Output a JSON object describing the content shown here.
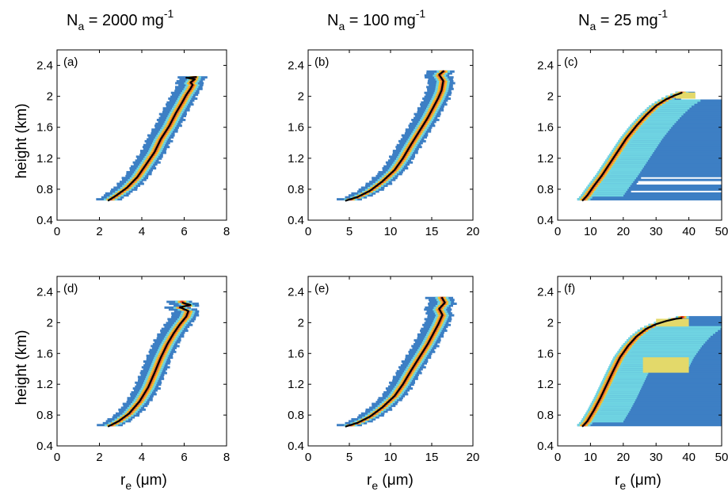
{
  "column_titles": [
    {
      "main": "N",
      "sub": "a",
      "rest": " = 2000 mg",
      "sup": "-1"
    },
    {
      "main": "N",
      "sub": "a",
      "rest": " = 100 mg",
      "sup": "-1"
    },
    {
      "main": "N",
      "sub": "a",
      "rest": " = 25 mg",
      "sup": "-1"
    }
  ],
  "ylabel": "height (km)",
  "xlabel": {
    "main": "r",
    "sub": "e",
    "rest": " (μm)"
  },
  "colors": {
    "low": "#3d7fc4",
    "mid_low": "#6fd4e2",
    "mid": "#e3d96a",
    "mid_high": "#f6c32a",
    "high": "#ef7a2a",
    "peak": "#e0302a",
    "curve": "#000000"
  },
  "chart_data": [
    {
      "panel": "(a)",
      "type": "heatmap",
      "xlim": [
        0,
        8
      ],
      "ylim": [
        0.4,
        2.6
      ],
      "xticks": [
        "0",
        "2",
        "4",
        "6",
        "8"
      ],
      "yticks": [
        "0.4",
        "0.8",
        "1.2",
        "1.6",
        "2",
        "2.4"
      ],
      "curve": {
        "x": [
          2.4,
          2.8,
          3.3,
          3.8,
          4.2,
          4.6,
          4.9,
          5.3,
          5.6,
          5.9,
          6.1,
          6.3,
          6.4,
          6.3,
          6.5,
          6.1,
          6.6
        ],
        "y": [
          0.65,
          0.72,
          0.82,
          0.96,
          1.12,
          1.28,
          1.45,
          1.62,
          1.78,
          1.92,
          2.02,
          2.1,
          2.15,
          2.18,
          2.22,
          2.24,
          2.25
        ]
      }
    },
    {
      "panel": "(b)",
      "type": "heatmap",
      "xlim": [
        0,
        20
      ],
      "ylim": [
        0.4,
        2.6
      ],
      "xticks": [
        "0",
        "5",
        "10",
        "15",
        "20"
      ],
      "yticks": [
        "0.4",
        "0.8",
        "1.2",
        "1.6",
        "2",
        "2.4"
      ],
      "curve": {
        "x": [
          4.5,
          6,
          7.5,
          9,
          10.5,
          11.5,
          12.5,
          13.5,
          14.5,
          15.3,
          15.8,
          16.2,
          16.4,
          15.9,
          16.5
        ],
        "y": [
          0.65,
          0.7,
          0.78,
          0.9,
          1.05,
          1.2,
          1.38,
          1.55,
          1.72,
          1.88,
          1.98,
          2.08,
          2.2,
          2.28,
          2.33
        ]
      }
    },
    {
      "panel": "(c)",
      "type": "heatmap",
      "xlim": [
        0,
        50
      ],
      "ylim": [
        0.4,
        2.6
      ],
      "xticks": [
        "0",
        "10",
        "20",
        "30",
        "40",
        "50"
      ],
      "yticks": [
        "0.4",
        "0.8",
        "1.2",
        "1.6",
        "2",
        "2.4"
      ],
      "curve": {
        "x": [
          7.5,
          9,
          11,
          13.5,
          16,
          18.5,
          21,
          24,
          27,
          30,
          33,
          35.5,
          37.5,
          38
        ],
        "y": [
          0.65,
          0.72,
          0.84,
          0.98,
          1.14,
          1.3,
          1.46,
          1.62,
          1.76,
          1.88,
          1.96,
          2.01,
          2.04,
          2.05
        ]
      }
    },
    {
      "panel": "(d)",
      "type": "heatmap",
      "xlim": [
        0,
        8
      ],
      "ylim": [
        0.4,
        2.6
      ],
      "xticks": [
        "0",
        "2",
        "4",
        "6",
        "8"
      ],
      "yticks": [
        "0.4",
        "0.8",
        "1.2",
        "1.6",
        "2",
        "2.4"
      ],
      "curve": {
        "x": [
          2.4,
          2.9,
          3.4,
          3.9,
          4.3,
          4.6,
          4.9,
          5.2,
          5.5,
          5.8,
          6.1,
          6.2,
          5.8,
          6.3,
          5.9
        ],
        "y": [
          0.65,
          0.72,
          0.82,
          0.98,
          1.16,
          1.35,
          1.55,
          1.72,
          1.86,
          1.98,
          2.08,
          2.15,
          2.2,
          2.23,
          2.26
        ]
      }
    },
    {
      "panel": "(e)",
      "type": "heatmap",
      "xlim": [
        0,
        20
      ],
      "ylim": [
        0.4,
        2.6
      ],
      "xticks": [
        "0",
        "5",
        "10",
        "15",
        "20"
      ],
      "yticks": [
        "0.4",
        "0.8",
        "1.2",
        "1.6",
        "2",
        "2.4"
      ],
      "curve": {
        "x": [
          4.5,
          6,
          7.5,
          9,
          10.5,
          11.5,
          12.5,
          13.5,
          14.5,
          15.3,
          15.8,
          16.3,
          15.9,
          16.6,
          16.2
        ],
        "y": [
          0.65,
          0.7,
          0.78,
          0.9,
          1.05,
          1.2,
          1.38,
          1.55,
          1.72,
          1.88,
          1.98,
          2.1,
          2.18,
          2.26,
          2.33
        ]
      }
    },
    {
      "panel": "(f)",
      "type": "heatmap",
      "xlim": [
        0,
        50
      ],
      "ylim": [
        0.4,
        2.6
      ],
      "xticks": [
        "0",
        "10",
        "20",
        "30",
        "40",
        "50"
      ],
      "yticks": [
        "0.4",
        "0.8",
        "1.2",
        "1.6",
        "2",
        "2.4"
      ],
      "curve": {
        "x": [
          7.5,
          9,
          11,
          13,
          15,
          17,
          19,
          21.5,
          24,
          27,
          30,
          33,
          36,
          38
        ],
        "y": [
          0.65,
          0.72,
          0.86,
          1.02,
          1.2,
          1.38,
          1.55,
          1.7,
          1.82,
          1.92,
          1.98,
          2.02,
          2.05,
          2.06
        ]
      }
    }
  ]
}
